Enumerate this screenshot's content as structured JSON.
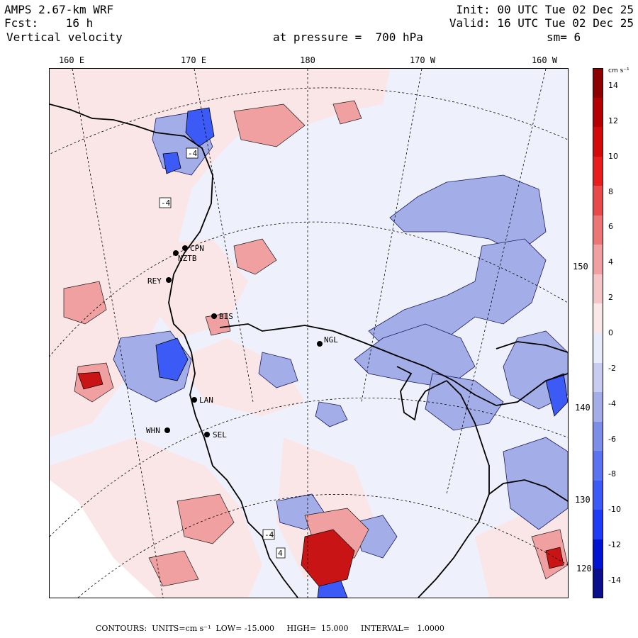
{
  "header": {
    "model": "AMPS 2.67-km WRF",
    "fcst": "Fcst:    16 h",
    "variable": "Vertical velocity",
    "init": "Init: 00 UTC Tue 02 Dec 25",
    "valid": "Valid: 16 UTC Tue 02 Dec 25",
    "level": "at pressure =  700 hPa",
    "smooth": "sm= 6"
  },
  "longitude_labels": [
    "160 E",
    "170 E",
    "180",
    "170 W",
    "160 W"
  ],
  "latitude_labels": [
    "150 W",
    "140 W",
    "130 W",
    "120 W"
  ],
  "stations": [
    {
      "id": "CPN"
    },
    {
      "id": "NZTB"
    },
    {
      "id": "REY"
    },
    {
      "id": "BIS"
    },
    {
      "id": "NGL"
    },
    {
      "id": "LAN"
    },
    {
      "id": "WHN"
    },
    {
      "id": "SEL"
    }
  ],
  "contour_value_labels": [
    "-4",
    "-4",
    "-4",
    "4"
  ],
  "colorbar": {
    "units_text": "cm s⁻¹",
    "tick_labels": [
      "14",
      "12",
      "10",
      "8",
      "6",
      "4",
      "2",
      "0",
      "-2",
      "-4",
      "-6",
      "-8",
      "-10",
      "-12",
      "-14"
    ],
    "range": [
      -15,
      15
    ],
    "interval": 2,
    "colors": [
      "#0a0f8c",
      "#0014d2",
      "#1e3cf5",
      "#3c5af5",
      "#5a74f0",
      "#7b8ee8",
      "#a3aee8",
      "#c8cdf0",
      "#e8ebfa",
      "#fae8e8",
      "#f5c6c6",
      "#f0a0a0",
      "#ec7676",
      "#e84a4a",
      "#e81e1e",
      "#d20a0a",
      "#b40000",
      "#8c0000"
    ]
  },
  "footer": {
    "contours": "CONTOURS:  UNITS=cm s⁻¹  LOW= -15.000     HIGH=  15.000     INTERVAL=   1.0000"
  },
  "field_colors": {
    "background_weak_negative": "#e8ebfa",
    "background_weak_positive": "#fae8e8",
    "negative_patch": "#a3aee8",
    "positive_patch": "#f0a0a0",
    "strong_negative": "#3c5af5",
    "strong_positive": "#c81414"
  }
}
